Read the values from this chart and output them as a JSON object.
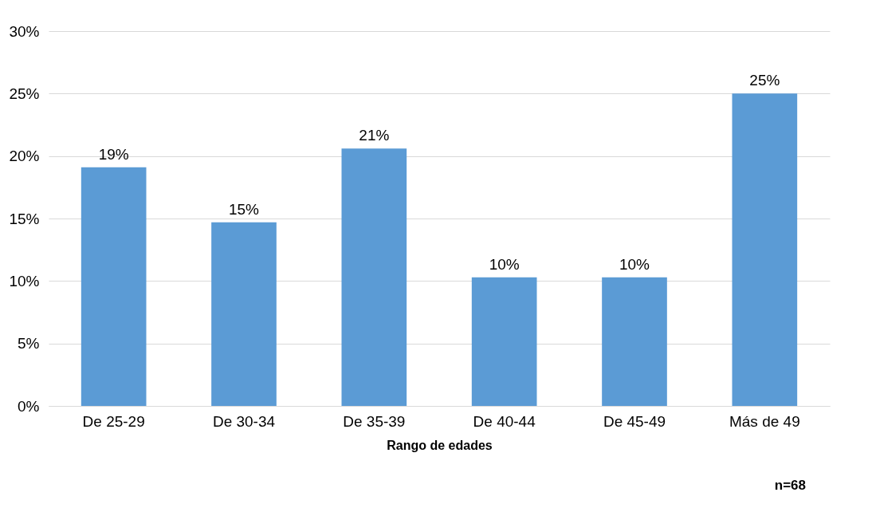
{
  "chart_data": {
    "type": "bar",
    "categories": [
      "De 25-29",
      "De 30-34",
      "De 35-39",
      "De 40-44",
      "De 45-49",
      "Más de 49"
    ],
    "values": [
      19.1,
      14.7,
      20.6,
      10.3,
      10.3,
      25.0
    ],
    "value_labels": [
      "19%",
      "15%",
      "21%",
      "10%",
      "10%",
      "25%"
    ],
    "color": "#5b9bd5",
    "xlabel": "Rango de edades",
    "ylim": [
      0,
      30
    ],
    "yticks": [
      {
        "value": 0,
        "label": "0%"
      },
      {
        "value": 5,
        "label": "5%"
      },
      {
        "value": 10,
        "label": "10%"
      },
      {
        "value": 15,
        "label": "15%"
      },
      {
        "value": 20,
        "label": "20%"
      },
      {
        "value": 25,
        "label": "25%"
      },
      {
        "value": 30,
        "label": "30%"
      }
    ],
    "grid": "y",
    "annotations": [
      "n=68"
    ]
  }
}
